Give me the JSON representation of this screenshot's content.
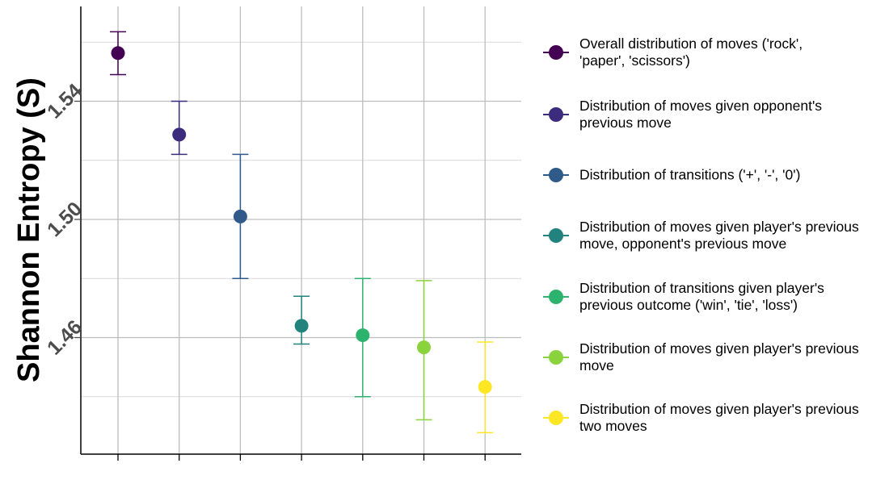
{
  "chart_data": {
    "type": "scatter",
    "title": "",
    "xlabel": "",
    "ylabel": "Shannon Entropy (S)",
    "ylim": [
      1.428,
      1.58
    ],
    "yticks": [
      1.46,
      1.5,
      1.54
    ],
    "ytick_labels": [
      "1.46",
      "1.50",
      "1.54"
    ],
    "legend_position": "right",
    "grid": true,
    "series": [
      {
        "name": "Overall distribution of moves ('rock', 'paper', 'scissors')",
        "color": "#440154",
        "x": 1,
        "y": 1.5563,
        "err_low": 1.549,
        "err_high": 1.5635
      },
      {
        "name": "Distribution of moves given opponent's previous move",
        "color": "#3B2C7E",
        "x": 2,
        "y": 1.5287,
        "err_low": 1.522,
        "err_high": 1.54
      },
      {
        "name": "Distribution of transitions ('+', '-', '0')",
        "color": "#2F5A8A",
        "x": 3,
        "y": 1.501,
        "err_low": 1.48,
        "err_high": 1.522
      },
      {
        "name": "Distribution of moves given player's previous move, opponent's previous move",
        "color": "#21837B",
        "x": 4,
        "y": 1.464,
        "err_low": 1.4578,
        "err_high": 1.474
      },
      {
        "name": "Distribution of transitions given player's previous outcome ('win', 'tie', 'loss')",
        "color": "#2EB36E",
        "x": 5,
        "y": 1.4608,
        "err_low": 1.44,
        "err_high": 1.48
      },
      {
        "name": "Distribution of moves given player's previous move",
        "color": "#8BD33C",
        "x": 6,
        "y": 1.4567,
        "err_low": 1.4322,
        "err_high": 1.4793
      },
      {
        "name": "Distribution of moves given player's previous two moves",
        "color": "#FDE725",
        "x": 7,
        "y": 1.4433,
        "err_low": 1.4278,
        "err_high": 1.4585
      }
    ]
  },
  "legend": {
    "items": [
      {
        "line1": "Overall distribution of moves ('rock',",
        "line2": "'paper', 'scissors')"
      },
      {
        "line1": "Distribution of moves given opponent's",
        "line2": "previous move"
      },
      {
        "line1": "Distribution of transitions ('+', '-', '0')",
        "line2": ""
      },
      {
        "line1": "Distribution of moves given player's previous",
        "line2": "move, opponent's previous move"
      },
      {
        "line1": "Distribution of transitions given player's",
        "line2": "previous outcome ('win', 'tie', 'loss')"
      },
      {
        "line1": "Distribution of moves given player's previous",
        "line2": "move"
      },
      {
        "line1": "Distribution of moves given player's previous",
        "line2": "two moves"
      }
    ]
  }
}
